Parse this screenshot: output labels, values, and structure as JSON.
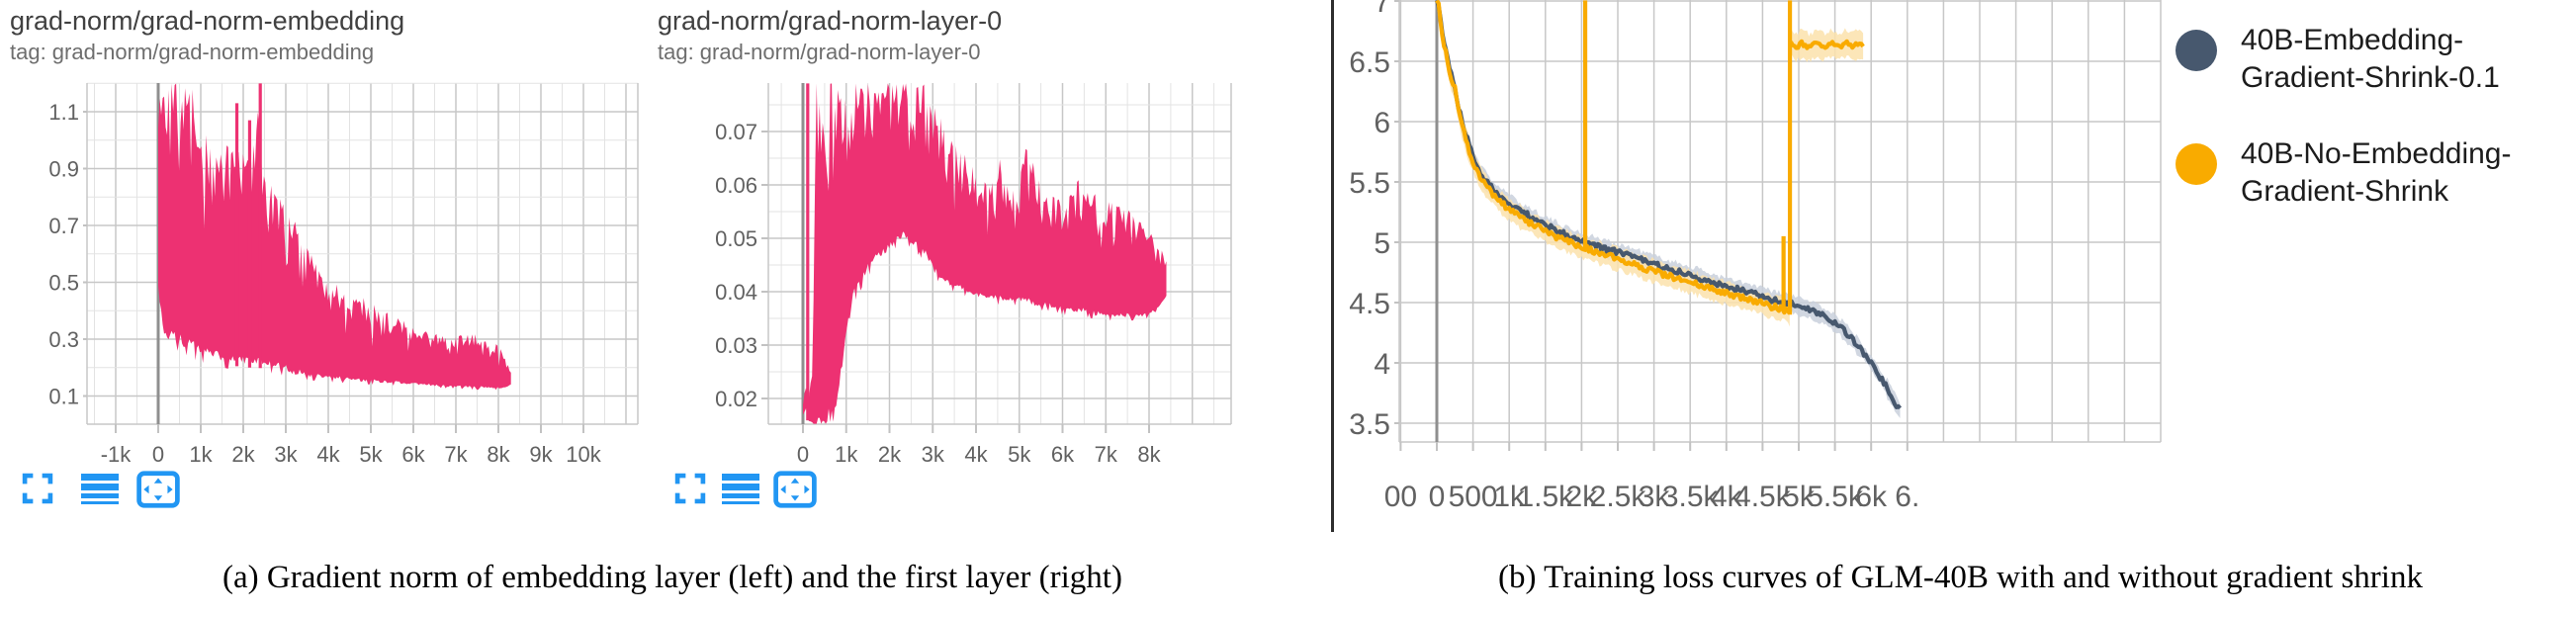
{
  "captions": {
    "a": "(a) Gradient norm of embedding layer (left) and the first layer (right)",
    "b": "(b) Training loss curves of GLM-40B with and without gradient shrink"
  },
  "legend": {
    "items": [
      {
        "line1": "40B-Embedding-",
        "line2": "Gradient-Shrink-0.1",
        "color": "#47586E"
      },
      {
        "line1": "40B-No-Embedding-",
        "line2": "Gradient-Shrink",
        "color": "#F9AB00"
      }
    ]
  },
  "charts": [
    {
      "title": "grad-norm/grad-norm-embedding",
      "tag": "tag: grad-norm/grad-norm-embedding"
    },
    {
      "title": "grad-norm/grad-norm-layer-0",
      "tag": "tag: grad-norm/grad-norm-layer-0"
    }
  ],
  "toolbar": {
    "icons": [
      "expand",
      "runs-list",
      "fit-domain"
    ],
    "color": "#2196F3"
  },
  "colors": {
    "pink": "#ED3172",
    "dark_series": "#47586E",
    "dark_band": "#C9D0DC",
    "orange_series": "#F9AB00",
    "orange_band": "#FBE2AC",
    "grid_major": "#C7C7C7",
    "grid_minor": "#E3E3E3",
    "zero_line": "#8F8F8F",
    "tick_text": "#616161"
  },
  "chart_data": [
    {
      "type": "area",
      "title": "grad-norm/grad-norm-embedding",
      "series_color": "#ED3172",
      "ylim": [
        0.0,
        1.2
      ],
      "xlim": [
        -1674,
        11280
      ],
      "y_ticks": [
        {
          "v": 1.1,
          "label": "1.1"
        },
        {
          "v": 0.9,
          "label": "0.9"
        },
        {
          "v": 0.7,
          "label": "0.7"
        },
        {
          "v": 0.5,
          "label": "0.5"
        },
        {
          "v": 0.3,
          "label": "0.3"
        },
        {
          "v": 0.1,
          "label": "0.1"
        }
      ],
      "x_ticks": [
        {
          "v": -1000,
          "label": "-1k"
        },
        {
          "v": 0,
          "label": "0"
        },
        {
          "v": 1000,
          "label": "1k"
        },
        {
          "v": 2000,
          "label": "2k"
        },
        {
          "v": 3000,
          "label": "3k"
        },
        {
          "v": 4000,
          "label": "4k"
        },
        {
          "v": 5000,
          "label": "5k"
        },
        {
          "v": 6000,
          "label": "6k"
        },
        {
          "v": 7000,
          "label": "7k"
        },
        {
          "v": 8000,
          "label": "8k"
        },
        {
          "v": 9000,
          "label": "9k"
        },
        {
          "v": 10000,
          "label": "10k"
        }
      ],
      "envelope": [
        [
          0,
          0.45,
          1.2
        ],
        [
          150,
          0.3,
          1.2
        ],
        [
          820,
          0.25,
          1.2
        ],
        [
          900,
          0.24,
          1.08
        ],
        [
          1100,
          0.23,
          1.02
        ],
        [
          1400,
          0.22,
          0.98
        ],
        [
          1700,
          0.21,
          1.0
        ],
        [
          2000,
          0.2,
          0.98
        ],
        [
          2350,
          0.2,
          1.1
        ],
        [
          2500,
          0.195,
          0.9
        ],
        [
          2800,
          0.19,
          0.8
        ],
        [
          3000,
          0.18,
          0.78
        ],
        [
          3200,
          0.17,
          0.72
        ],
        [
          3500,
          0.165,
          0.62
        ],
        [
          3800,
          0.16,
          0.55
        ],
        [
          4100,
          0.155,
          0.5
        ],
        [
          4500,
          0.15,
          0.47
        ],
        [
          4900,
          0.147,
          0.44
        ],
        [
          5300,
          0.143,
          0.4
        ],
        [
          5700,
          0.14,
          0.37
        ],
        [
          6100,
          0.136,
          0.34
        ],
        [
          6500,
          0.133,
          0.32
        ],
        [
          6900,
          0.13,
          0.3
        ],
        [
          7300,
          0.127,
          0.33
        ],
        [
          7700,
          0.125,
          0.3
        ],
        [
          8000,
          0.125,
          0.28
        ],
        [
          8200,
          0.13,
          0.22
        ],
        [
          8300,
          0.14,
          0.18
        ]
      ],
      "spikes": [
        {
          "x": 1850,
          "to": 1.13
        },
        {
          "x": 2150,
          "to": 1.07
        },
        {
          "x": 2400,
          "to": 1.2
        }
      ]
    },
    {
      "type": "area",
      "title": "grad-norm/grad-norm-layer-0",
      "series_color": "#ED3172",
      "ylim": [
        0.015,
        0.079
      ],
      "xlim": [
        -800,
        9900
      ],
      "y_ticks": [
        {
          "v": 0.07,
          "label": "0.07"
        },
        {
          "v": 0.06,
          "label": "0.06"
        },
        {
          "v": 0.05,
          "label": "0.05"
        },
        {
          "v": 0.04,
          "label": "0.04"
        },
        {
          "v": 0.03,
          "label": "0.03"
        },
        {
          "v": 0.02,
          "label": "0.02"
        }
      ],
      "x_ticks": [
        {
          "v": 0,
          "label": "0"
        },
        {
          "v": 1000,
          "label": "1k"
        },
        {
          "v": 2000,
          "label": "2k"
        },
        {
          "v": 3000,
          "label": "3k"
        },
        {
          "v": 4000,
          "label": "4k"
        },
        {
          "v": 5000,
          "label": "5k"
        },
        {
          "v": 6000,
          "label": "6k"
        },
        {
          "v": 7000,
          "label": "7k"
        },
        {
          "v": 8000,
          "label": "8k"
        }
      ],
      "envelope": [
        [
          0,
          0.017,
          0.019
        ],
        [
          70,
          0.018,
          0.024
        ],
        [
          100,
          0.016,
          0.02
        ],
        [
          150,
          0.0155,
          0.022
        ],
        [
          230,
          0.0152,
          0.03
        ],
        [
          300,
          0.0152,
          0.079
        ],
        [
          750,
          0.0152,
          0.079
        ],
        [
          950,
          0.028,
          0.079
        ],
        [
          1150,
          0.038,
          0.079
        ],
        [
          1450,
          0.043,
          0.079
        ],
        [
          1750,
          0.046,
          0.079
        ],
        [
          2050,
          0.048,
          0.079
        ],
        [
          2300,
          0.05,
          0.079
        ],
        [
          2600,
          0.048,
          0.079
        ],
        [
          2850,
          0.046,
          0.079
        ],
        [
          3050,
          0.043,
          0.075
        ],
        [
          3350,
          0.041,
          0.07
        ],
        [
          3650,
          0.04,
          0.067
        ],
        [
          3950,
          0.039,
          0.063
        ],
        [
          4250,
          0.0385,
          0.06
        ],
        [
          4550,
          0.038,
          0.065
        ],
        [
          4850,
          0.038,
          0.059
        ],
        [
          5150,
          0.0375,
          0.067
        ],
        [
          5450,
          0.037,
          0.062
        ],
        [
          5750,
          0.0368,
          0.059
        ],
        [
          6050,
          0.036,
          0.056
        ],
        [
          6350,
          0.036,
          0.061
        ],
        [
          6650,
          0.0355,
          0.059
        ],
        [
          6950,
          0.035,
          0.057
        ],
        [
          7250,
          0.035,
          0.058
        ],
        [
          7550,
          0.035,
          0.055
        ],
        [
          7850,
          0.035,
          0.053
        ],
        [
          8150,
          0.036,
          0.05
        ],
        [
          8400,
          0.039,
          0.046
        ]
      ],
      "spikes": [
        {
          "x": 110,
          "to": 0.079
        }
      ]
    },
    {
      "type": "line",
      "ylim": [
        3.34,
        7.06
      ],
      "xlim": [
        -520,
        10000
      ],
      "y_ticks": [
        {
          "v": 7,
          "label": "7"
        },
        {
          "v": 6.5,
          "label": "6.5"
        },
        {
          "v": 6,
          "label": "6"
        },
        {
          "v": 5.5,
          "label": "5.5"
        },
        {
          "v": 5,
          "label": "5"
        },
        {
          "v": 4.5,
          "label": "4.5"
        },
        {
          "v": 4,
          "label": "4"
        },
        {
          "v": 3.5,
          "label": "3.5"
        }
      ],
      "x_ticks": [
        {
          "v": -500,
          "label": "00"
        },
        {
          "v": 0,
          "label": "0"
        },
        {
          "v": 500,
          "label": "500"
        },
        {
          "v": 1000,
          "label": "1k"
        },
        {
          "v": 1500,
          "label": "1.5k"
        },
        {
          "v": 2000,
          "label": "2k"
        },
        {
          "v": 2500,
          "label": "2.5k"
        },
        {
          "v": 3000,
          "label": "3k"
        },
        {
          "v": 3500,
          "label": "3.5k"
        },
        {
          "v": 4000,
          "label": "4k"
        },
        {
          "v": 4500,
          "label": "4.5k"
        },
        {
          "v": 5000,
          "label": "5k"
        },
        {
          "v": 5500,
          "label": "5.5k"
        },
        {
          "v": 6000,
          "label": "6k"
        },
        {
          "v": 6500,
          "label": "6."
        }
      ],
      "series": [
        {
          "name": "40B-Embedding-Gradient-Shrink-0.1",
          "color": "#47586E",
          "band_color": "#C9D0DC",
          "band": 0.07,
          "points": [
            [
              0,
              7.05
            ],
            [
              40,
              6.92
            ],
            [
              90,
              6.68
            ],
            [
              140,
              6.56
            ],
            [
              200,
              6.38
            ],
            [
              250,
              6.3
            ],
            [
              300,
              6.12
            ],
            [
              380,
              5.93
            ],
            [
              460,
              5.78
            ],
            [
              540,
              5.65
            ],
            [
              620,
              5.56
            ],
            [
              700,
              5.49
            ],
            [
              800,
              5.42
            ],
            [
              900,
              5.37
            ],
            [
              1000,
              5.32
            ],
            [
              1150,
              5.26
            ],
            [
              1300,
              5.21
            ],
            [
              1450,
              5.16
            ],
            [
              1600,
              5.11
            ],
            [
              1750,
              5.07
            ],
            [
              1900,
              5.03
            ],
            [
              2050,
              5.0
            ],
            [
              2200,
              4.97
            ],
            [
              2350,
              4.94
            ],
            [
              2500,
              4.92
            ],
            [
              2650,
              4.89
            ],
            [
              2800,
              4.86
            ],
            [
              2950,
              4.83
            ],
            [
              3100,
              4.8
            ],
            [
              3250,
              4.77
            ],
            [
              3400,
              4.75
            ],
            [
              3550,
              4.72
            ],
            [
              3700,
              4.69
            ],
            [
              3850,
              4.66
            ],
            [
              4000,
              4.63
            ],
            [
              4150,
              4.61
            ],
            [
              4300,
              4.58
            ],
            [
              4450,
              4.56
            ],
            [
              4600,
              4.53
            ],
            [
              4750,
              4.51
            ],
            [
              4900,
              4.49
            ],
            [
              5000,
              4.47
            ],
            [
              5100,
              4.45
            ],
            [
              5200,
              4.43
            ],
            [
              5300,
              4.4
            ],
            [
              5400,
              4.37
            ],
            [
              5500,
              4.33
            ],
            [
              5600,
              4.28
            ],
            [
              5700,
              4.22
            ],
            [
              5800,
              4.15
            ],
            [
              5900,
              4.08
            ],
            [
              6000,
              4.0
            ],
            [
              6100,
              3.91
            ],
            [
              6200,
              3.81
            ],
            [
              6300,
              3.71
            ],
            [
              6400,
              3.6
            ]
          ]
        },
        {
          "name": "40B-No-Embedding-Gradient-Shrink",
          "color": "#F9AB00",
          "band_color": "#FBE2AC",
          "band": 0.09,
          "points": [
            [
              0,
              7.05
            ],
            [
              40,
              6.9
            ],
            [
              90,
              6.65
            ],
            [
              140,
              6.53
            ],
            [
              200,
              6.35
            ],
            [
              250,
              6.27
            ],
            [
              300,
              6.08
            ],
            [
              380,
              5.89
            ],
            [
              460,
              5.74
            ],
            [
              540,
              5.61
            ],
            [
              620,
              5.52
            ],
            [
              700,
              5.45
            ],
            [
              800,
              5.38
            ],
            [
              900,
              5.32
            ],
            [
              1000,
              5.27
            ],
            [
              1150,
              5.21
            ],
            [
              1300,
              5.16
            ],
            [
              1450,
              5.11
            ],
            [
              1600,
              5.06
            ],
            [
              1750,
              5.02
            ],
            [
              1900,
              4.98
            ],
            [
              2050,
              4.95
            ],
            [
              2200,
              4.92
            ],
            [
              2350,
              4.89
            ],
            [
              2500,
              4.86
            ],
            [
              2650,
              4.83
            ],
            [
              2800,
              4.8
            ],
            [
              2950,
              4.77
            ],
            [
              3100,
              4.74
            ],
            [
              3250,
              4.71
            ],
            [
              3400,
              4.69
            ],
            [
              3550,
              4.66
            ],
            [
              3700,
              4.63
            ],
            [
              3850,
              4.6
            ],
            [
              4000,
              4.58
            ],
            [
              4150,
              4.55
            ],
            [
              4300,
              4.52
            ],
            [
              4450,
              4.5
            ],
            [
              4600,
              4.47
            ],
            [
              4750,
              4.45
            ],
            [
              4850,
              4.42
            ],
            [
              4878,
              4.4
            ]
          ],
          "plateau_points": [
            [
              4890,
              6.67
            ],
            [
              4950,
              6.61
            ],
            [
              5050,
              6.65
            ],
            [
              5150,
              6.61
            ],
            [
              5250,
              6.65
            ],
            [
              5350,
              6.62
            ],
            [
              5450,
              6.65
            ],
            [
              5550,
              6.62
            ],
            [
              5650,
              6.65
            ],
            [
              5750,
              6.63
            ],
            [
              5850,
              6.64
            ],
            [
              5900,
              6.62
            ]
          ],
          "plateau_band": 0.11,
          "spikes": [
            {
              "x": 2050,
              "to": 7.06
            },
            {
              "x": 4790,
              "to": 5.05
            },
            {
              "x": 4878,
              "to": 7.06
            }
          ]
        }
      ]
    }
  ]
}
